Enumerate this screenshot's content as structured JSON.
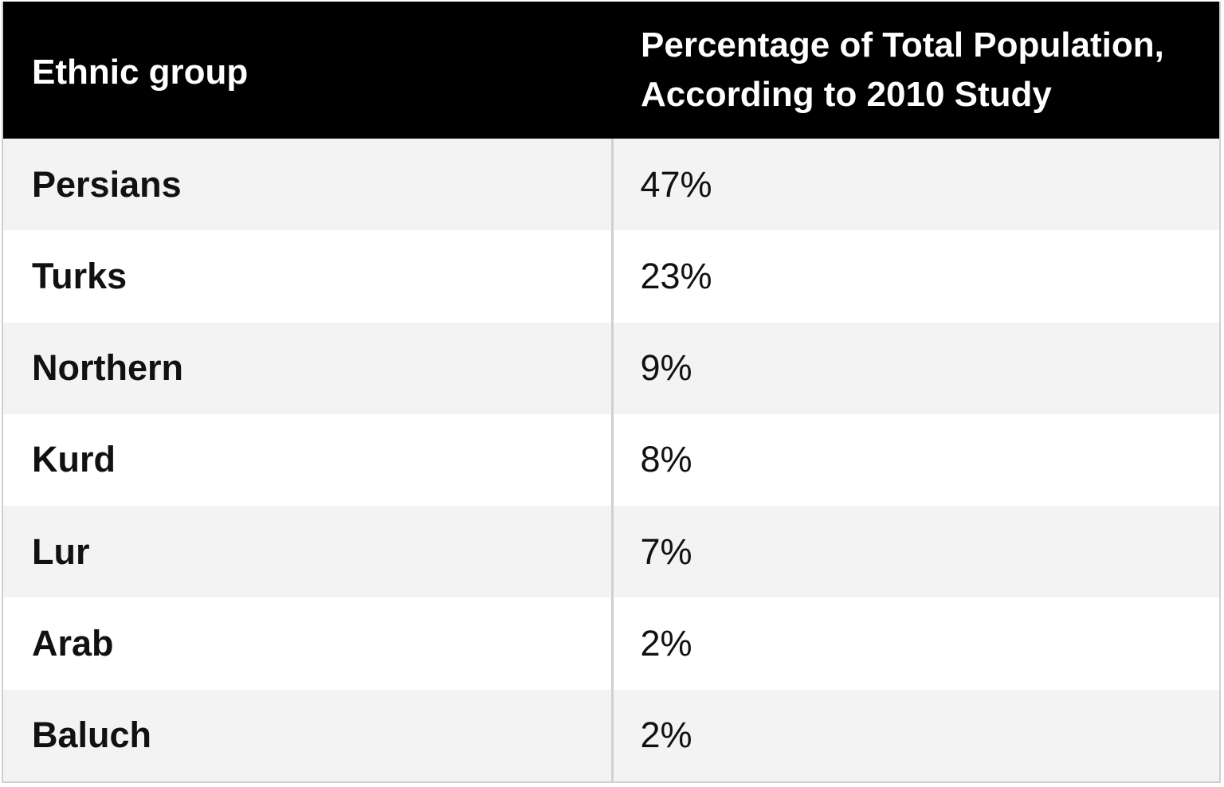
{
  "chart_data": {
    "type": "table",
    "columns": [
      "Ethnic group",
      "Percentage of Total Population, According to 2010 Study"
    ],
    "header_lines": {
      "col1": "Ethnic group",
      "col2_line1": "Percentage of Total Population,",
      "col2_line2": "According to 2010 Study"
    },
    "rows": [
      {
        "group": "Persians",
        "percent_label": "47%",
        "percent": 47
      },
      {
        "group": "Turks",
        "percent_label": "23%",
        "percent": 23
      },
      {
        "group": "Northern",
        "percent_label": "9%",
        "percent": 9
      },
      {
        "group": "Kurd",
        "percent_label": "8%",
        "percent": 8
      },
      {
        "group": "Lur",
        "percent_label": "7%",
        "percent": 7
      },
      {
        "group": "Arab",
        "percent_label": "2%",
        "percent": 2
      },
      {
        "group": "Baluch",
        "percent_label": "2%",
        "percent": 2
      }
    ]
  },
  "colors": {
    "header_bg": "#000000",
    "header_text": "#ffffff",
    "row_alt_bg": "#f3f3f3",
    "row_bg": "#ffffff",
    "divider": "#cfcfcf"
  }
}
